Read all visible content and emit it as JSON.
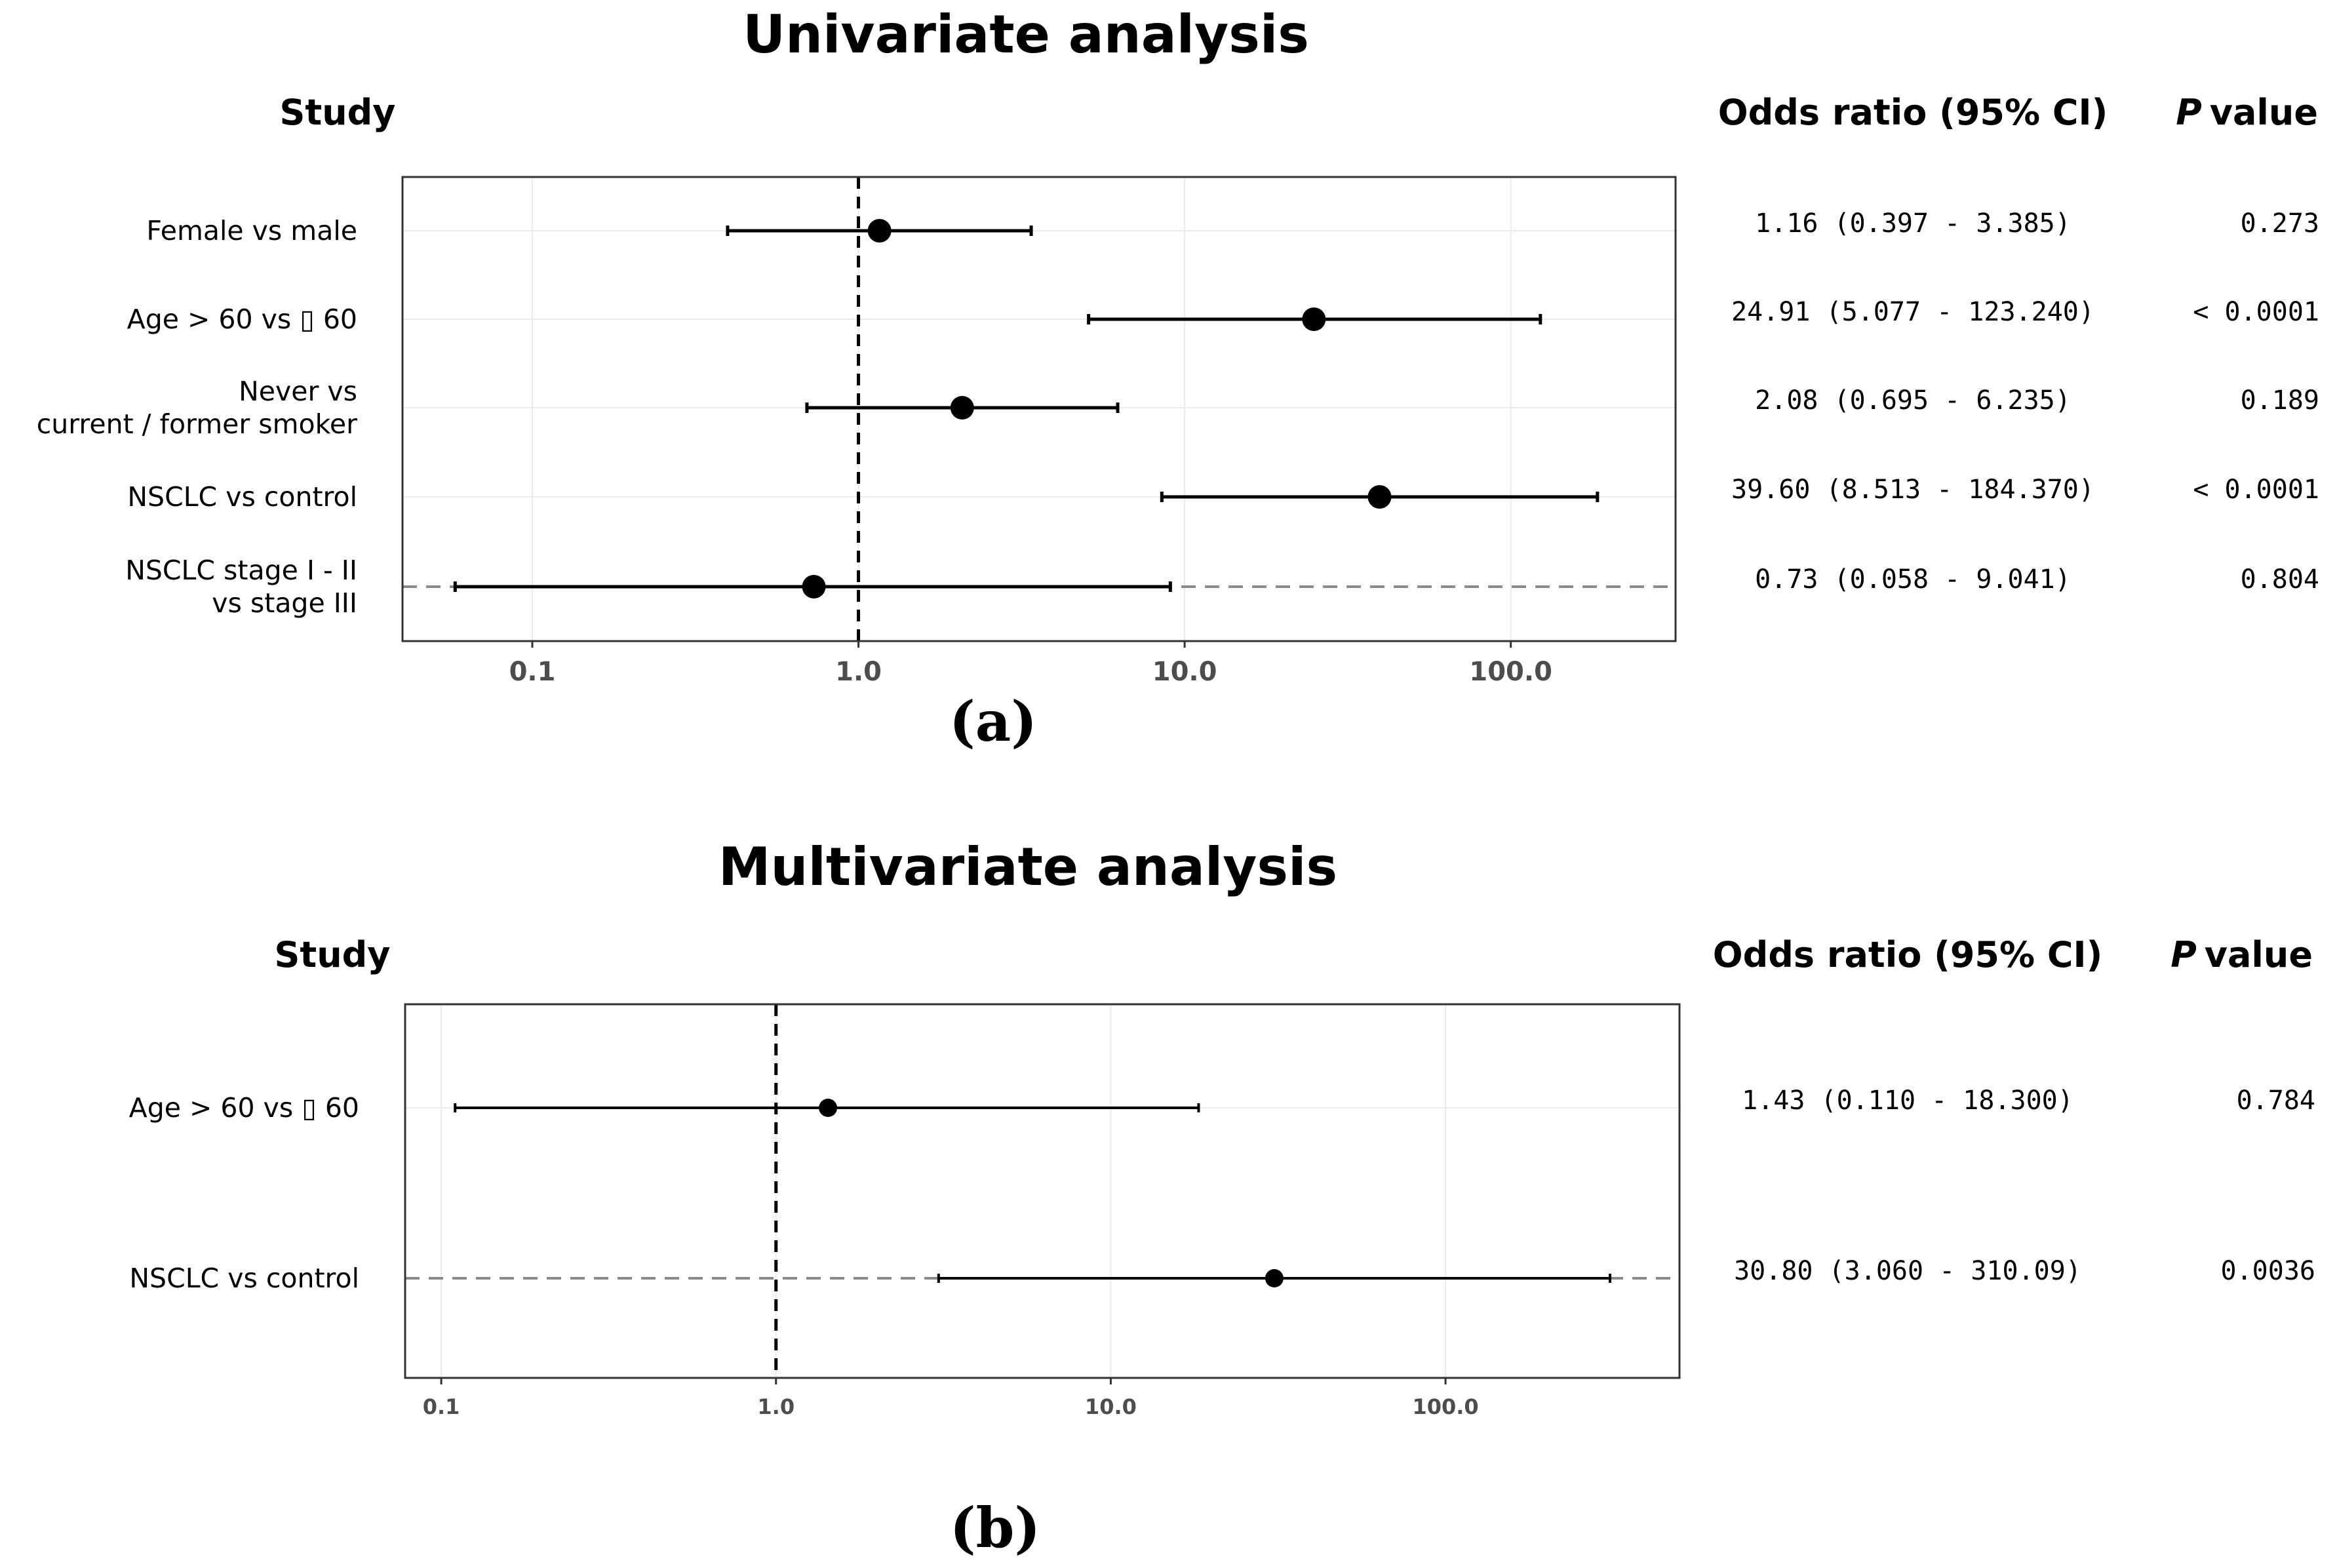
{
  "figure": {
    "label_a": "(a)",
    "label_b": "(b)"
  },
  "chart_data": [
    {
      "type": "forest",
      "panel": "(a)",
      "title": "Univariate analysis",
      "column_headers": {
        "study": "Study",
        "or": "Odds ratio (95% CI)",
        "p_bold_letter": "P",
        "p_rest": "value"
      },
      "x_scale": "log10",
      "xlim": [
        0.04,
        320
      ],
      "ticks": [
        0.1,
        1.0,
        10.0,
        100.0
      ],
      "tick_labels": [
        "0.1",
        "1.0",
        "10.0",
        "100.0"
      ],
      "reference_line": 1.0,
      "grid": true,
      "rows": [
        {
          "label": [
            "Female vs male"
          ],
          "or": 1.16,
          "lo": 0.397,
          "hi": 3.385,
          "text": "1.16 (0.397 - 3.385)",
          "p": "0.273"
        },
        {
          "label": [
            "Age > 60 vs ▯  60"
          ],
          "or": 24.91,
          "lo": 5.077,
          "hi": 123.24,
          "text": "24.91 (5.077 - 123.240)",
          "p": "< 0.0001"
        },
        {
          "label": [
            "Never vs",
            "current / former smoker"
          ],
          "or": 2.08,
          "lo": 0.695,
          "hi": 6.235,
          "text": "2.08 (0.695 - 6.235)",
          "p": "0.189"
        },
        {
          "label": [
            "NSCLC vs control"
          ],
          "or": 39.6,
          "lo": 8.513,
          "hi": 184.37,
          "text": "39.60 (8.513 - 184.370)",
          "p": "< 0.0001"
        },
        {
          "label": [
            "NSCLC stage I - II",
            "vs stage III"
          ],
          "or": 0.73,
          "lo": 0.058,
          "hi": 9.041,
          "text": "0.73 (0.058 - 9.041)",
          "p": "0.804",
          "dashed_row": true
        }
      ]
    },
    {
      "type": "forest",
      "panel": "(b)",
      "title": "Multivariate analysis",
      "column_headers": {
        "study": "Study",
        "or": "Odds ratio (95% CI)",
        "p_bold_letter": "P",
        "p_rest": "value"
      },
      "x_scale": "log10",
      "xlim": [
        0.078,
        500
      ],
      "ticks": [
        0.1,
        1.0,
        10.0,
        100.0
      ],
      "tick_labels": [
        "0.1",
        "1.0",
        "10.0",
        "100.0"
      ],
      "reference_line": 1.0,
      "grid": true,
      "rows": [
        {
          "label": [
            "Age > 60 vs ▯  60"
          ],
          "or": 1.43,
          "lo": 0.11,
          "hi": 18.3,
          "text": "1.43 (0.110 - 18.300)",
          "p": "0.784"
        },
        {
          "label": [
            "NSCLC vs control"
          ],
          "or": 30.8,
          "lo": 3.06,
          "hi": 310.09,
          "text": "30.80 (3.060 - 310.09)",
          "p": "0.0036",
          "dashed_row": true
        }
      ]
    }
  ]
}
